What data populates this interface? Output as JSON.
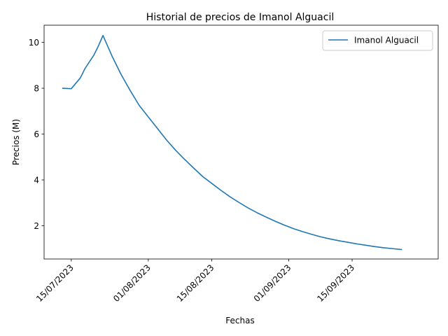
{
  "chart_data": {
    "type": "line",
    "title": "Historial de precios de Imanol Alguacil",
    "xlabel": "Fechas",
    "ylabel": "Precios (M)",
    "x_tick_labels": [
      "15/07/2023",
      "01/08/2023",
      "15/08/2023",
      "01/09/2023",
      "15/09/2023"
    ],
    "x_tick_dates": [
      "2023-07-15",
      "2023-08-01",
      "2023-08-15",
      "2023-09-01",
      "2023-09-15"
    ],
    "y_ticks": [
      2,
      4,
      6,
      8,
      10
    ],
    "xlim": [
      "2023-07-09",
      "2023-10-04"
    ],
    "ylim": [
      0.55,
      10.75
    ],
    "grid": false,
    "legend_position": "top-right",
    "series": [
      {
        "name": "Imanol Alguacil",
        "color": "#1f77b4",
        "points": [
          [
            "2023-07-13",
            8.0
          ],
          [
            "2023-07-15",
            7.98
          ],
          [
            "2023-07-17",
            8.45
          ],
          [
            "2023-07-18",
            8.85
          ],
          [
            "2023-07-20",
            9.45
          ],
          [
            "2023-07-21",
            9.85
          ],
          [
            "2023-07-22",
            10.3
          ],
          [
            "2023-07-24",
            9.4
          ],
          [
            "2023-07-26",
            8.6
          ],
          [
            "2023-07-28",
            7.9
          ],
          [
            "2023-07-30",
            7.25
          ],
          [
            "2023-08-01",
            6.75
          ],
          [
            "2023-08-03",
            6.25
          ],
          [
            "2023-08-05",
            5.75
          ],
          [
            "2023-08-07",
            5.3
          ],
          [
            "2023-08-09",
            4.9
          ],
          [
            "2023-08-11",
            4.52
          ],
          [
            "2023-08-13",
            4.15
          ],
          [
            "2023-08-15",
            3.85
          ],
          [
            "2023-08-17",
            3.55
          ],
          [
            "2023-08-19",
            3.27
          ],
          [
            "2023-08-21",
            3.02
          ],
          [
            "2023-08-23",
            2.78
          ],
          [
            "2023-08-25",
            2.57
          ],
          [
            "2023-08-27",
            2.38
          ],
          [
            "2023-08-29",
            2.2
          ],
          [
            "2023-08-31",
            2.03
          ],
          [
            "2023-09-02",
            1.88
          ],
          [
            "2023-09-04",
            1.75
          ],
          [
            "2023-09-06",
            1.63
          ],
          [
            "2023-09-08",
            1.52
          ],
          [
            "2023-09-10",
            1.43
          ],
          [
            "2023-09-12",
            1.35
          ],
          [
            "2023-09-14",
            1.28
          ],
          [
            "2023-09-16",
            1.21
          ],
          [
            "2023-09-18",
            1.15
          ],
          [
            "2023-09-20",
            1.09
          ],
          [
            "2023-09-22",
            1.04
          ],
          [
            "2023-09-24",
            1.0
          ],
          [
            "2023-09-26",
            0.96
          ]
        ]
      }
    ]
  }
}
